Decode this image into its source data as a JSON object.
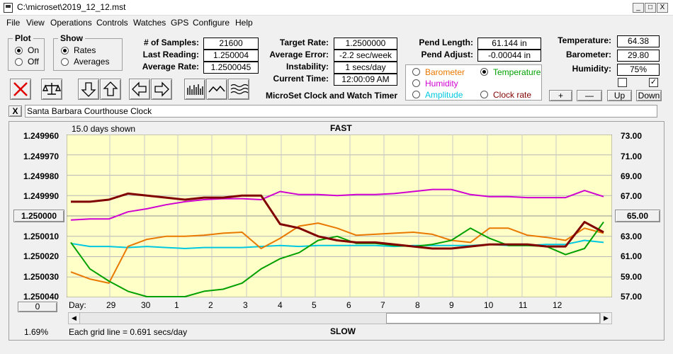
{
  "window": {
    "title": "C:\\microset\\2019_12_12.mst",
    "minimize": "_",
    "maximize": "□",
    "close": "X"
  },
  "menu": [
    "File",
    "View",
    "Operations",
    "Controls",
    "Watches",
    "GPS",
    "Configure",
    "Help"
  ],
  "plot_group": {
    "title": "Plot",
    "options": [
      "On",
      "Off"
    ],
    "selected": "On"
  },
  "show_group": {
    "title": "Show",
    "options": [
      "Rates",
      "Averages"
    ],
    "selected": "Rates"
  },
  "stats": {
    "samples_label": "# of Samples:",
    "samples": "21600",
    "last_reading_label": "Last Reading:",
    "last_reading": "1.250004",
    "average_rate_label": "Average Rate:",
    "average_rate": "1.2500045",
    "target_rate_label": "Target Rate:",
    "target_rate": "1.2500000",
    "average_error_label": "Average Error:",
    "average_error": "-2.2 sec/week",
    "instability_label": "Instability:",
    "instability": "1 secs/day",
    "current_time_label": "Current Time:",
    "current_time": "12:00:09 AM",
    "pend_length_label": "Pend Length:",
    "pend_length": "61.144 in",
    "pend_adjust_label": "Pend Adjust:",
    "pend_adjust": "-0.00044 in",
    "temperature_label": "Temperature:",
    "temperature": "64.38",
    "barometer_label": "Barometer:",
    "barometer": "29.80",
    "humidity_label": "Humidity:",
    "humidity": "75%"
  },
  "app_caption": "MicroSet Clock and Watch Timer",
  "sensor_options": {
    "selected": "Temperature",
    "items": [
      {
        "label": "Barometer",
        "color": "#e87800"
      },
      {
        "label": "Temperature",
        "color": "#00a000"
      },
      {
        "label": "Humidity",
        "color": "#d000d0"
      },
      {
        "label": "Amplitude",
        "color": "#00c8e0"
      },
      {
        "label": "Clock rate",
        "color": "#800000"
      }
    ]
  },
  "aux_buttons": {
    "plus": "+",
    "minus": "—",
    "up": "Up",
    "down": "Down"
  },
  "checkboxes": [
    {
      "checked": false
    },
    {
      "checked": true
    }
  ],
  "clock_name_close": "X",
  "clock_name": "Santa Barbara Courthouse Clock",
  "chart": {
    "days_shown": "15.0 days shown",
    "top_label": "FAST",
    "bottom_label": "SLOW",
    "left_ticks": [
      "1.249960",
      "1.249970",
      "1.249980",
      "1.249990",
      "1.250000",
      "1.250010",
      "1.250020",
      "1.250030",
      "1.250040"
    ],
    "right_ticks": [
      "73.00",
      "71.00",
      "69.00",
      "67.00",
      "65.00",
      "63.00",
      "61.00",
      "59.00",
      "57.00"
    ],
    "day_label": "Day:",
    "days": [
      "29",
      "30",
      "1",
      "2",
      "3",
      "4",
      "5",
      "6",
      "7",
      "8",
      "9",
      "10",
      "11",
      "12"
    ],
    "left_zero_button": "0",
    "percent": "1.69%",
    "grid_note": "Each grid line = 0.691 secs/day",
    "bg_color": "#ffffc8"
  },
  "chart_data": {
    "type": "line",
    "x_label": "Day",
    "x": [
      "28.5",
      "29",
      "29.5",
      "30",
      "30.5",
      "1",
      "1.5",
      "2",
      "2.5",
      "3",
      "3.5",
      "4",
      "4.5",
      "5",
      "5.5",
      "6",
      "6.5",
      "7",
      "7.5",
      "8",
      "8.5",
      "9",
      "9.5",
      "10",
      "10.5",
      "11",
      "11.5",
      "12",
      "12.5"
    ],
    "y_left_range": [
      1.24996,
      1.25004
    ],
    "y_right_range": [
      57,
      73
    ],
    "series": [
      {
        "name": "Clock rate",
        "color": "#800000",
        "axis": "left",
        "values": [
          1.249993,
          1.249993,
          1.249992,
          1.249989,
          1.24999,
          1.249991,
          1.249992,
          1.249991,
          1.249991,
          1.24999,
          1.24999,
          1.250004,
          1.250006,
          1.25001,
          1.250012,
          1.250013,
          1.250013,
          1.250014,
          1.250015,
          1.250016,
          1.250016,
          1.250015,
          1.250014,
          1.250014,
          1.250014,
          1.250015,
          1.250015,
          1.250003,
          1.250008
        ]
      },
      {
        "name": "Barometer",
        "color": "#e87800",
        "axis": "right",
        "values": [
          59.5,
          58.8,
          58.4,
          62.0,
          62.7,
          63.0,
          63.0,
          63.1,
          63.3,
          63.4,
          61.8,
          62.8,
          64.0,
          64.3,
          63.8,
          63.1,
          63.2,
          63.3,
          63.4,
          63.2,
          62.6,
          62.4,
          63.8,
          63.8,
          63.1,
          62.9,
          62.6,
          63.8,
          63.3
        ]
      },
      {
        "name": "Temperature",
        "color": "#00a000",
        "axis": "right",
        "values": [
          62.4,
          59.8,
          58.6,
          57.6,
          57.0,
          56.9,
          56.9,
          57.6,
          57.8,
          58.4,
          59.8,
          60.8,
          61.4,
          62.6,
          63.0,
          62.3,
          62.3,
          62.1,
          62.0,
          62.2,
          62.6,
          63.8,
          62.8,
          62.1,
          62.1,
          62.0,
          61.2,
          61.8,
          64.4
        ]
      },
      {
        "name": "Humidity",
        "color": "#d000d0",
        "axis": "right",
        "values": [
          64.6,
          64.7,
          64.7,
          65.4,
          65.7,
          66.1,
          66.4,
          66.6,
          66.7,
          66.7,
          66.6,
          67.4,
          67.1,
          67.1,
          67.0,
          67.1,
          67.1,
          67.2,
          67.4,
          67.6,
          67.6,
          67.1,
          66.9,
          66.9,
          66.8,
          66.8,
          66.8,
          67.5,
          66.9
        ]
      },
      {
        "name": "Amplitude",
        "color": "#00c8e0",
        "axis": "right",
        "values": [
          62.3,
          62.0,
          62.0,
          61.9,
          62.0,
          61.9,
          61.8,
          61.9,
          61.9,
          61.9,
          62.0,
          62.1,
          62.0,
          62.1,
          62.1,
          62.1,
          62.1,
          62.0,
          62.1,
          62.1,
          62.1,
          62.1,
          62.2,
          62.1,
          62.1,
          62.2,
          62.2,
          62.6,
          62.4
        ]
      }
    ]
  }
}
